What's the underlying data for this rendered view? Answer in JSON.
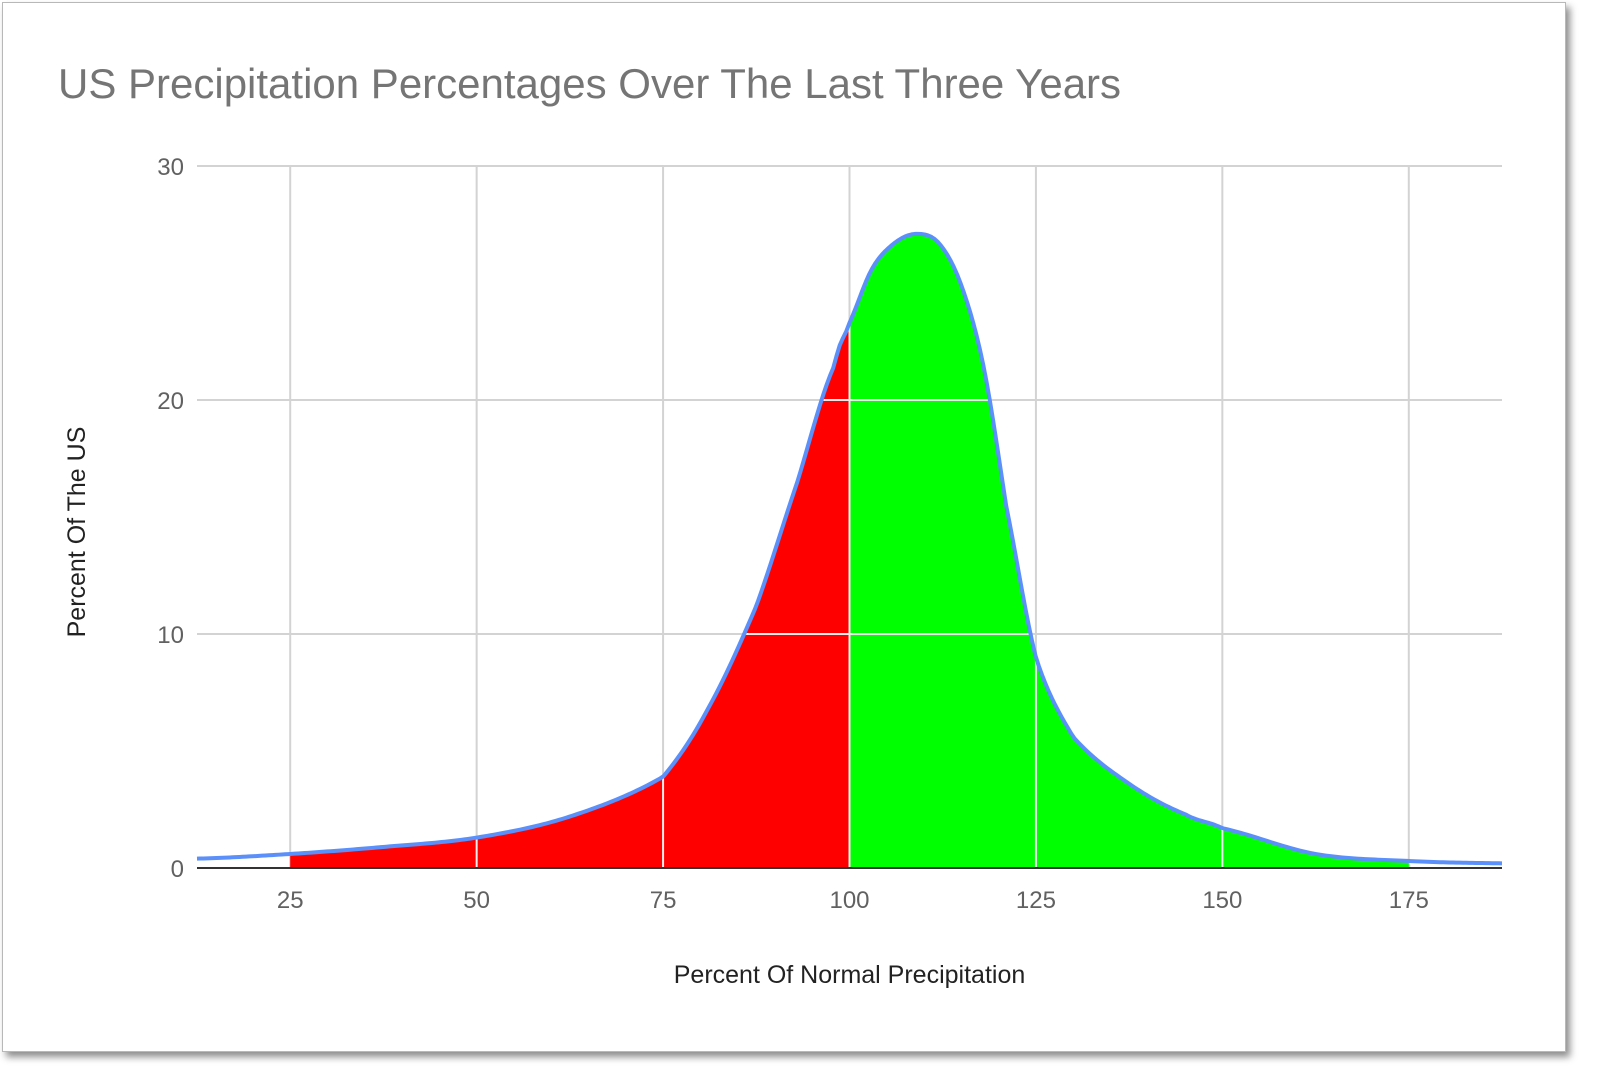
{
  "chart_data": {
    "type": "area",
    "title": "US Precipitation Percentages Over The Last Three Years",
    "xlabel": "Percent Of Normal Precipitation",
    "ylabel": "Percent Of The US",
    "xlim": [
      12.5,
      187.5
    ],
    "ylim": [
      0,
      30
    ],
    "x_ticks": [
      "25",
      "50",
      "75",
      "100",
      "125",
      "150",
      "175"
    ],
    "y_ticks": [
      "0",
      "10",
      "20",
      "30"
    ],
    "grid": true,
    "legend": "none",
    "series": [
      {
        "x": [
          12.5,
          25,
          37.5,
          50,
          62.5,
          75,
          81,
          87.5,
          93,
          98,
          100,
          103,
          106,
          109,
          112,
          115,
          118,
          121,
          125,
          130,
          137.5,
          145,
          150,
          162.5,
          175,
          187.5
        ],
        "y": [
          0.4,
          0.6,
          0.9,
          1.3,
          2.2,
          3.9,
          6.8,
          11.2,
          16.5,
          21.5,
          23.3,
          25.6,
          26.7,
          27.1,
          26.7,
          24.9,
          21.4,
          15.5,
          9.0,
          5.6,
          3.6,
          2.3,
          1.7,
          0.6,
          0.3,
          0.2
        ],
        "color": "#5b8ff9"
      }
    ],
    "fills": [
      {
        "from": 25,
        "to": 100,
        "color": "#ff0000"
      },
      {
        "from": 100,
        "to": 175,
        "color": "#00ff00"
      }
    ]
  }
}
